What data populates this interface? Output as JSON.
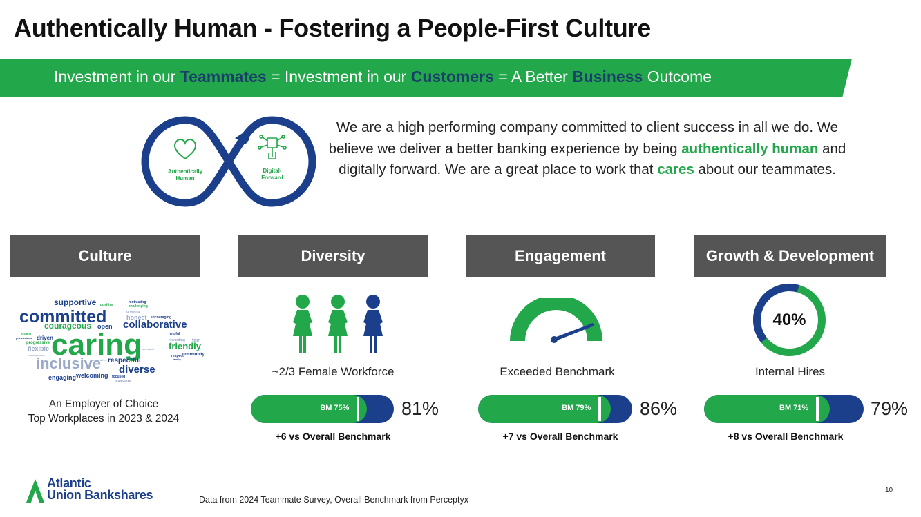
{
  "title": "Authentically Human - Fostering a People-First Culture",
  "banner": {
    "part1": "Investment in our ",
    "word1": "Teammates",
    "part2": " = Investment in our ",
    "word2": "Customers",
    "part3": " = A Better ",
    "word3": "Business",
    "part4": " Outcome"
  },
  "infinity": {
    "left_label": "Authentically Human",
    "left_line1": "Authentically",
    "left_line2": "Human",
    "right_line1": "Digital-",
    "right_line2": "Forward"
  },
  "intro": {
    "t1": "We are a high performing company committed to client success in all we do. We believe we deliver a better banking experience by being ",
    "g1": "authentically human",
    "t2": " and digitally forward. We are a great place to work that ",
    "g2": "cares",
    "t3": " about our teammates."
  },
  "pillars": [
    {
      "header": "Culture"
    },
    {
      "header": "Diversity",
      "caption": "~2/3 Female Workforce",
      "bm_label": "BM 75%",
      "bm": 75,
      "value": 81,
      "value_label": "81%",
      "delta": "+6 vs Overall Benchmark"
    },
    {
      "header": "Engagement",
      "caption": "Exceeded Benchmark",
      "bm_label": "BM 79%",
      "bm": 79,
      "value": 86,
      "value_label": "86%",
      "delta": "+7 vs Overall Benchmark"
    },
    {
      "header": "Growth & Development",
      "caption": "Internal Hires",
      "donut_label": "40%",
      "donut_value": 40,
      "bm_label": "BM 71%",
      "bm": 71,
      "value": 79,
      "value_label": "79%",
      "delta": "+8 vs Overall Benchmark"
    }
  ],
  "wordcloud": {
    "words": [
      "supportive",
      "positive",
      "motivating",
      "challenging",
      "committed",
      "honest",
      "encouraging",
      "growing",
      "courageous",
      "open",
      "collaborative",
      "caring",
      "driven",
      "progressive",
      "flexible",
      "rewarding",
      "fair",
      "helpful",
      "friendly",
      "inclusive",
      "respectful",
      "diverse",
      "respect",
      "community",
      "engaging",
      "welcoming",
      "focused",
      "teamwork",
      "family",
      "professional",
      "exciting",
      "transparency",
      "innovative",
      "stressful"
    ]
  },
  "employer": {
    "line1": "An Employer of Choice",
    "line2": "Top Workplaces in 2023 & 2024"
  },
  "colors": {
    "green": "#22a84a",
    "navy": "#1b3f8b",
    "dark_navy": "#1b3f6b",
    "header_gray": "#555555"
  },
  "logo": {
    "line1": "Atlantic",
    "line2": "Union Bankshares"
  },
  "footnote": "Data from 2024 Teammate  Survey, Overall Benchmark from Perceptyx",
  "page_number": "10"
}
